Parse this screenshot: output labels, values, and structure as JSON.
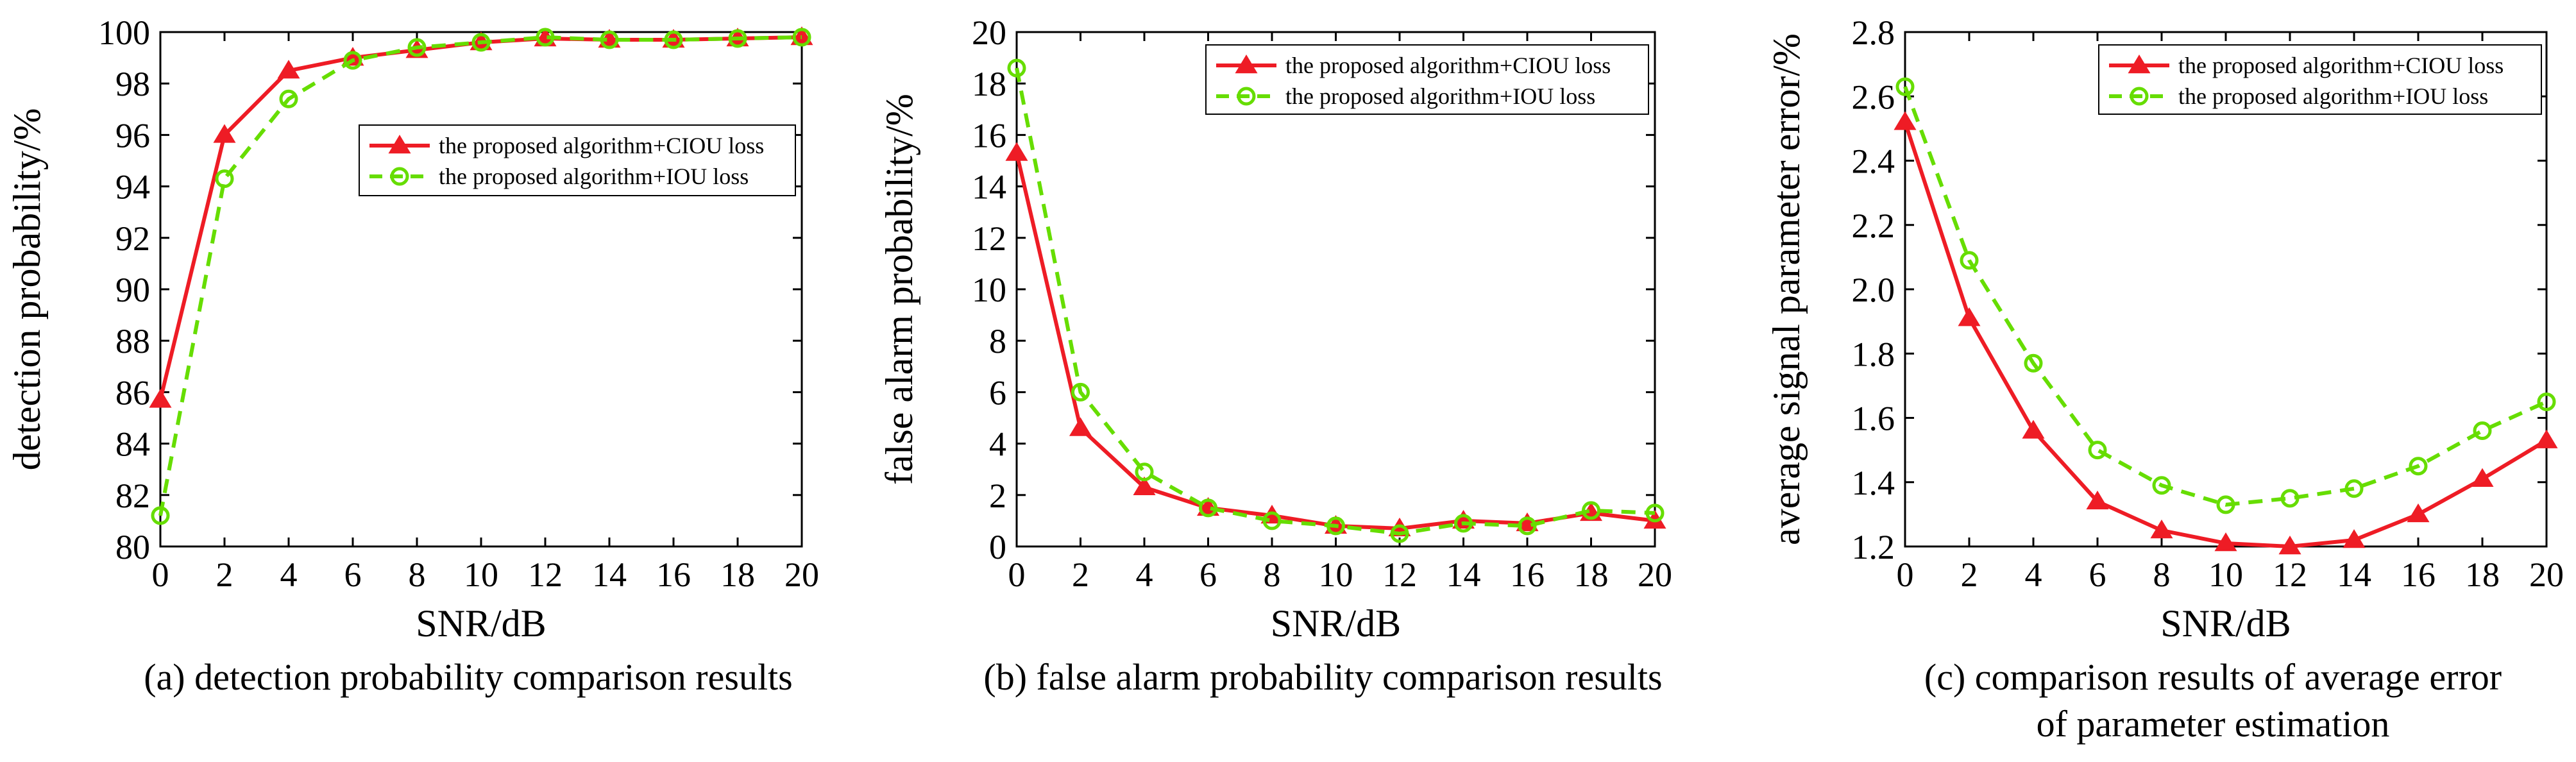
{
  "chart_data": [
    {
      "type": "line",
      "caption_lines": [
        "(a) detection probability comparison results"
      ],
      "xlabel": "SNR/dB",
      "ylabel": "detection probability/%",
      "xlim": [
        0,
        20
      ],
      "ylim": [
        80,
        100
      ],
      "xticks": [
        0,
        2,
        4,
        6,
        8,
        10,
        12,
        14,
        16,
        18,
        20
      ],
      "yticks": [
        80,
        82,
        84,
        86,
        88,
        90,
        92,
        94,
        96,
        98,
        100
      ],
      "legend_position": "center-right",
      "grid": false,
      "x": [
        0,
        2,
        4,
        6,
        8,
        10,
        12,
        14,
        16,
        18,
        20
      ],
      "series": [
        {
          "name": "the proposed algorithm+CIOU loss",
          "color": "#ee1c25",
          "style": "solid",
          "marker": "triangle",
          "values": [
            85.7,
            96.0,
            98.5,
            99.0,
            99.3,
            99.6,
            99.75,
            99.7,
            99.7,
            99.75,
            99.8
          ]
        },
        {
          "name": "the proposed algorithm+IOU loss",
          "color": "#66dd00",
          "style": "dashed",
          "marker": "circle",
          "values": [
            81.2,
            94.3,
            97.4,
            98.9,
            99.4,
            99.6,
            99.8,
            99.7,
            99.7,
            99.75,
            99.8
          ]
        }
      ]
    },
    {
      "type": "line",
      "caption_lines": [
        "(b) false alarm probability comparison results"
      ],
      "xlabel": "SNR/dB",
      "ylabel": "false alarm probability/%",
      "xlim": [
        0,
        20
      ],
      "ylim": [
        0,
        20
      ],
      "xticks": [
        0,
        2,
        4,
        6,
        8,
        10,
        12,
        14,
        16,
        18,
        20
      ],
      "yticks": [
        0,
        2,
        4,
        6,
        8,
        10,
        12,
        14,
        16,
        18,
        20
      ],
      "legend_position": "top-right",
      "grid": false,
      "x": [
        0,
        2,
        4,
        6,
        8,
        10,
        12,
        14,
        16,
        18,
        20
      ],
      "series": [
        {
          "name": "the proposed algorithm+CIOU loss",
          "color": "#ee1c25",
          "style": "solid",
          "marker": "triangle",
          "values": [
            15.3,
            4.6,
            2.3,
            1.5,
            1.2,
            0.8,
            0.7,
            1.0,
            0.9,
            1.3,
            1.0
          ]
        },
        {
          "name": "the proposed algorithm+IOU loss",
          "color": "#66dd00",
          "style": "dashed",
          "marker": "circle",
          "values": [
            18.6,
            6.0,
            2.9,
            1.5,
            1.0,
            0.8,
            0.5,
            0.9,
            0.8,
            1.4,
            1.3
          ]
        }
      ]
    },
    {
      "type": "line",
      "caption_lines": [
        "(c) comparison results of average error",
        "of parameter estimation"
      ],
      "xlabel": "SNR/dB",
      "ylabel": "average signal parameter error/%",
      "xlim": [
        0,
        20
      ],
      "ylim": [
        1.2,
        2.8
      ],
      "xticks": [
        0,
        2,
        4,
        6,
        8,
        10,
        12,
        14,
        16,
        18,
        20
      ],
      "yticks": [
        1.2,
        1.4,
        1.6,
        1.8,
        2.0,
        2.2,
        2.4,
        2.6,
        2.8
      ],
      "ytick_labels": [
        "1.2",
        "1.4",
        "1.6",
        "1.8",
        "2.0",
        "2.2",
        "2.4",
        "2.6",
        "2.8"
      ],
      "legend_position": "top-right",
      "grid": false,
      "x": [
        0,
        2,
        4,
        6,
        8,
        10,
        12,
        14,
        16,
        18,
        20
      ],
      "series": [
        {
          "name": "the proposed algorithm+CIOU loss",
          "color": "#ee1c25",
          "style": "solid",
          "marker": "triangle",
          "values": [
            2.52,
            1.91,
            1.56,
            1.34,
            1.25,
            1.21,
            1.2,
            1.22,
            1.3,
            1.41,
            1.53
          ]
        },
        {
          "name": "the proposed algorithm+IOU loss",
          "color": "#66dd00",
          "style": "dashed",
          "marker": "circle",
          "values": [
            2.63,
            2.09,
            1.77,
            1.5,
            1.39,
            1.33,
            1.35,
            1.38,
            1.45,
            1.56,
            1.65
          ]
        }
      ]
    }
  ]
}
